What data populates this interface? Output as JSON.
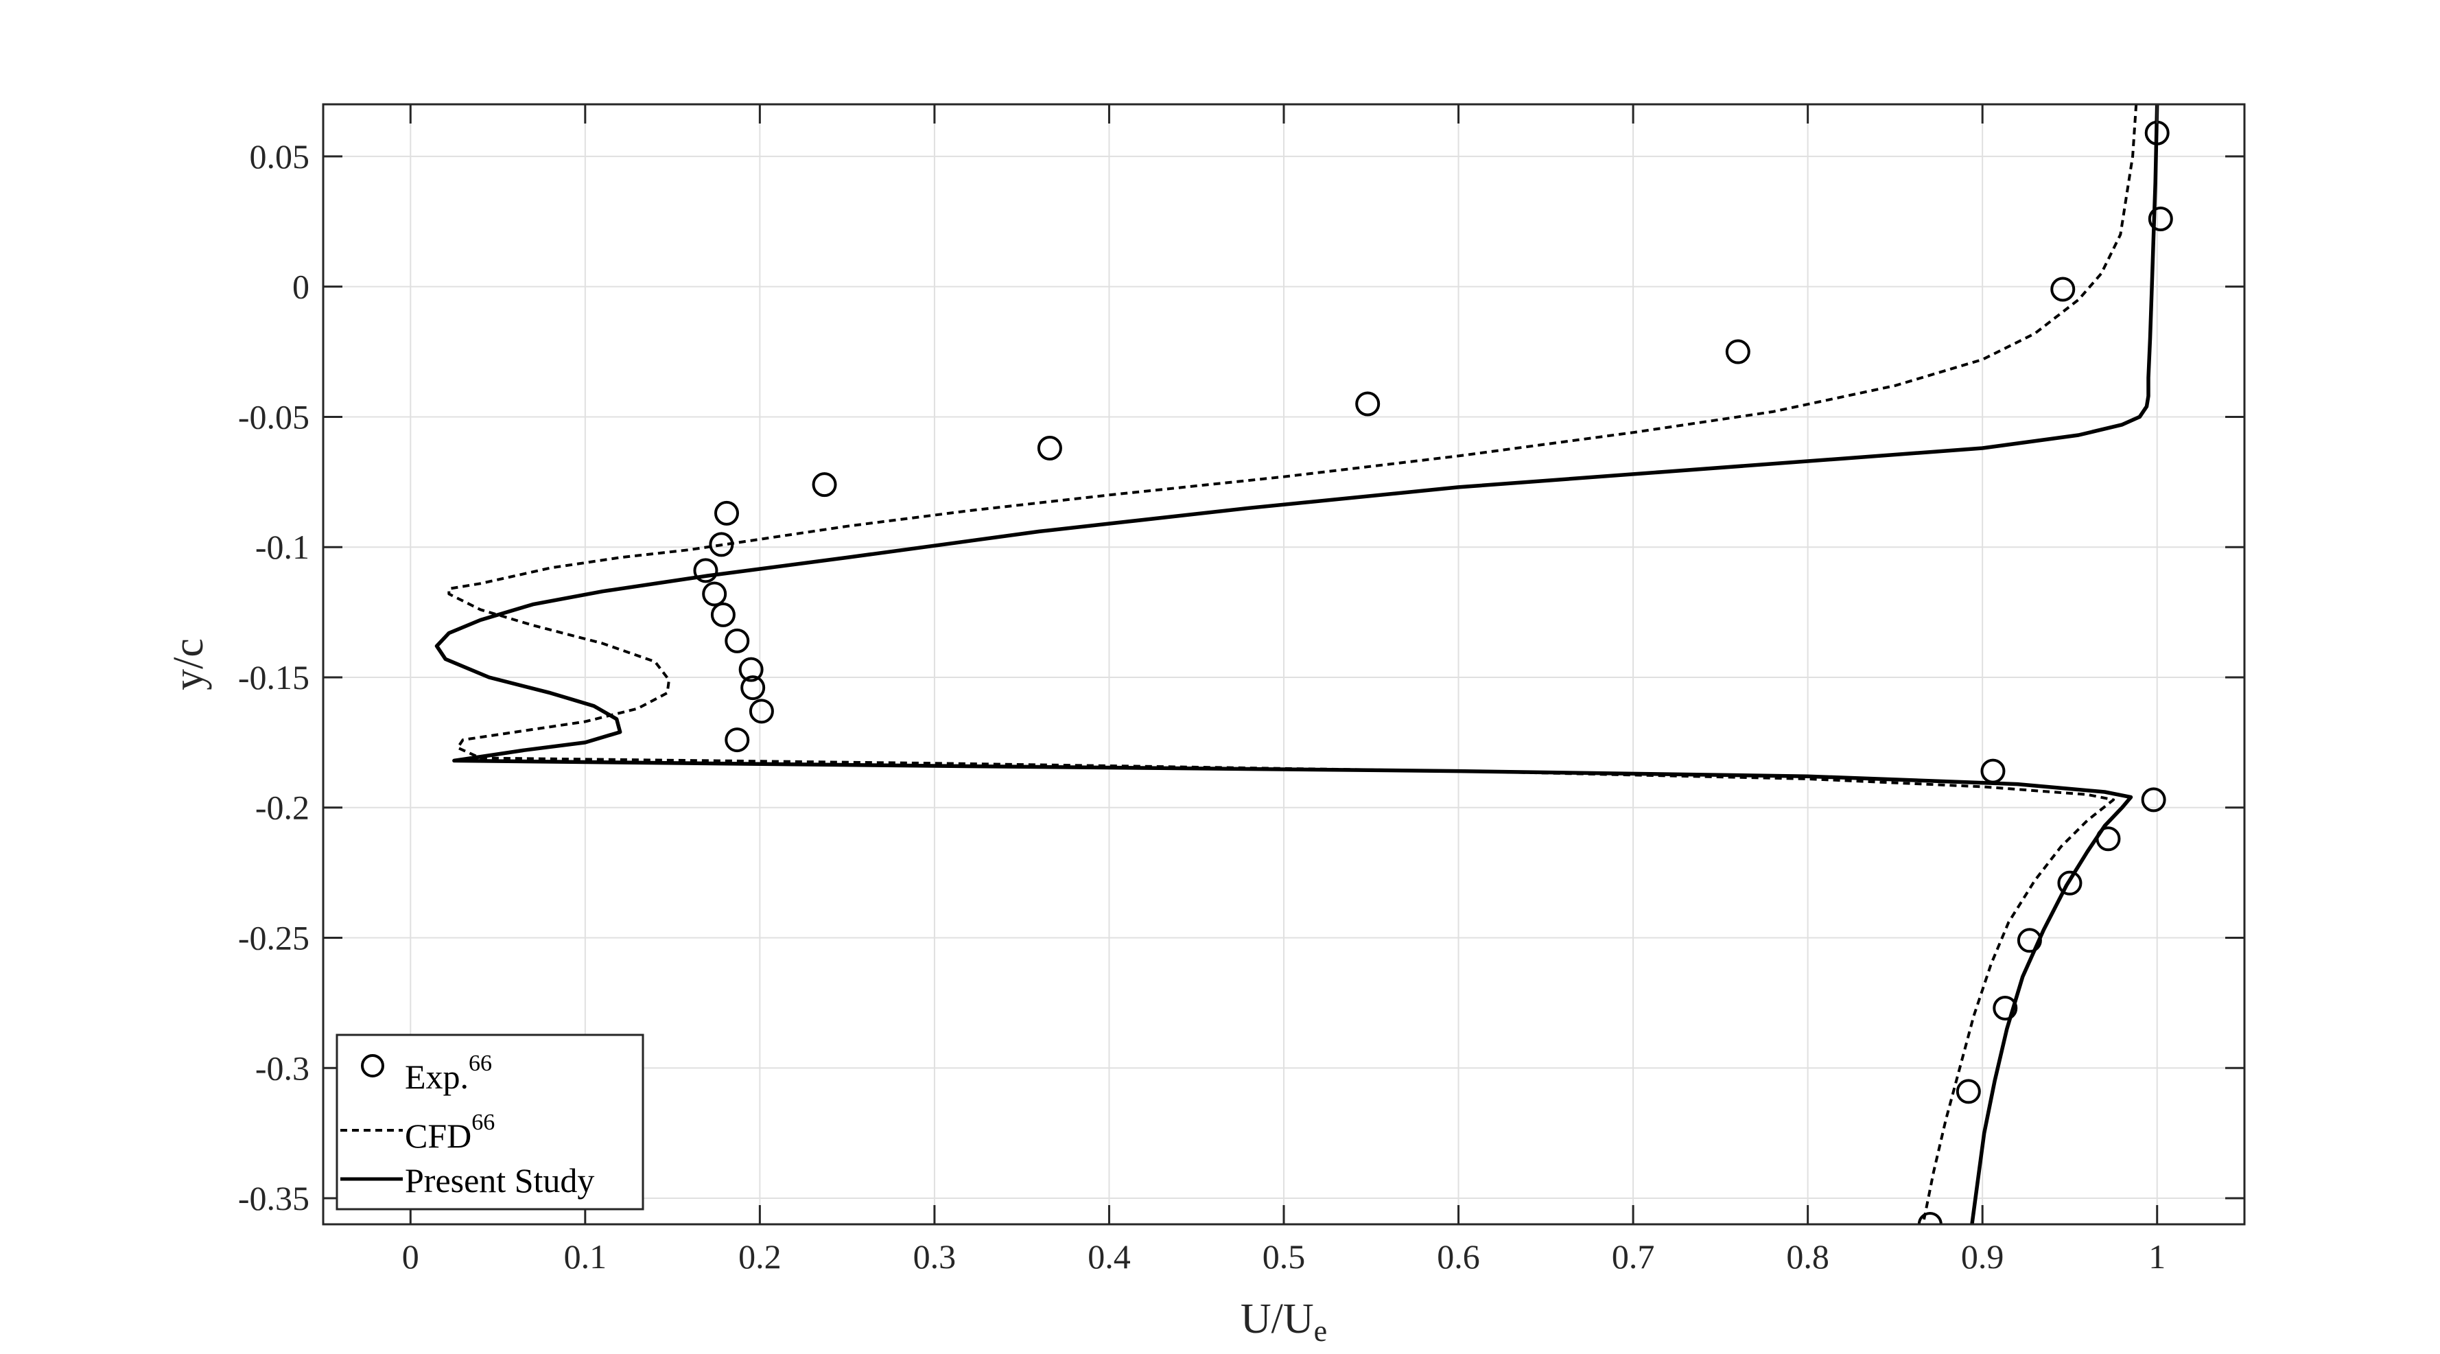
{
  "chart_data": {
    "type": "line",
    "xlabel": "U/U",
    "xlabel_sub": "e",
    "ylabel": "y/c",
    "xlim": [
      -0.05,
      1.05
    ],
    "ylim": [
      -0.36,
      0.07
    ],
    "xticks": [
      "0",
      "0.1",
      "0.2",
      "0.3",
      "0.4",
      "0.5",
      "0.6",
      "0.7",
      "0.8",
      "0.9",
      "1"
    ],
    "yticks": [
      "0.05",
      "0",
      "-0.05",
      "-0.1",
      "-0.15",
      "-0.2",
      "-0.25",
      "-0.3",
      "-0.35"
    ],
    "grid": true,
    "legend_position": "bottom-left",
    "series": [
      {
        "name": "Exp.",
        "name_sup": "66",
        "style": "markers",
        "x": [
          1.0,
          1.002,
          0.946,
          0.76,
          0.548,
          0.366,
          0.237,
          0.181,
          0.178,
          0.169,
          0.174,
          0.179,
          0.187,
          0.195,
          0.196,
          0.201,
          0.187,
          0.906,
          0.998,
          0.972,
          0.95,
          0.927,
          0.913,
          0.892,
          0.87
        ],
        "y": [
          0.059,
          0.026,
          -0.001,
          -0.025,
          -0.045,
          -0.062,
          -0.076,
          -0.087,
          -0.099,
          -0.109,
          -0.118,
          -0.126,
          -0.136,
          -0.147,
          -0.154,
          -0.163,
          -0.174,
          -0.186,
          -0.197,
          -0.212,
          -0.229,
          -0.251,
          -0.277,
          -0.309,
          -0.36
        ]
      },
      {
        "name": "CFD",
        "name_sup": "66",
        "style": "dashed",
        "x": [
          0.988,
          0.986,
          0.979,
          0.968,
          0.955,
          0.93,
          0.9,
          0.85,
          0.78,
          0.7,
          0.6,
          0.5,
          0.4,
          0.32,
          0.25,
          0.2,
          0.16,
          0.12,
          0.08,
          0.06,
          0.04,
          0.022,
          0.022,
          0.04,
          0.07,
          0.11,
          0.14,
          0.148,
          0.147,
          0.13,
          0.1,
          0.07,
          0.05,
          0.03,
          0.027,
          0.04,
          0.3,
          0.6,
          0.8,
          0.9,
          0.96,
          0.975,
          0.96,
          0.945,
          0.93,
          0.915,
          0.905,
          0.895,
          0.887,
          0.879,
          0.872,
          0.866
        ],
        "y": [
          0.07,
          0.05,
          0.02,
          0.005,
          -0.005,
          -0.018,
          -0.028,
          -0.038,
          -0.048,
          -0.056,
          -0.065,
          -0.073,
          -0.08,
          -0.086,
          -0.092,
          -0.097,
          -0.101,
          -0.104,
          -0.108,
          -0.111,
          -0.114,
          -0.116,
          -0.118,
          -0.124,
          -0.13,
          -0.137,
          -0.144,
          -0.151,
          -0.156,
          -0.162,
          -0.167,
          -0.17,
          -0.172,
          -0.174,
          -0.177,
          -0.181,
          -0.183,
          -0.186,
          -0.189,
          -0.192,
          -0.195,
          -0.197,
          -0.205,
          -0.215,
          -0.228,
          -0.244,
          -0.26,
          -0.28,
          -0.3,
          -0.32,
          -0.34,
          -0.36
        ]
      },
      {
        "name": "Present Study",
        "style": "solid",
        "x": [
          1.0,
          0.999,
          0.998,
          0.997,
          0.996,
          0.995,
          0.995,
          0.994,
          0.99,
          0.98,
          0.955,
          0.9,
          0.82,
          0.72,
          0.6,
          0.48,
          0.36,
          0.25,
          0.17,
          0.11,
          0.07,
          0.04,
          0.022,
          0.015,
          0.02,
          0.045,
          0.08,
          0.105,
          0.118,
          0.12,
          0.1,
          0.065,
          0.035,
          0.025,
          0.3,
          0.6,
          0.8,
          0.92,
          0.97,
          0.985,
          0.98,
          0.97,
          0.96,
          0.948,
          0.935,
          0.923,
          0.914,
          0.907,
          0.901,
          0.897,
          0.894
        ],
        "y": [
          0.07,
          0.04,
          0.02,
          0.0,
          -0.02,
          -0.035,
          -0.042,
          -0.046,
          -0.05,
          -0.053,
          -0.057,
          -0.062,
          -0.066,
          -0.071,
          -0.077,
          -0.085,
          -0.094,
          -0.104,
          -0.111,
          -0.117,
          -0.122,
          -0.128,
          -0.133,
          -0.138,
          -0.143,
          -0.15,
          -0.156,
          -0.161,
          -0.166,
          -0.171,
          -0.175,
          -0.178,
          -0.181,
          -0.182,
          -0.184,
          -0.186,
          -0.188,
          -0.191,
          -0.194,
          -0.196,
          -0.2,
          -0.207,
          -0.217,
          -0.23,
          -0.247,
          -0.265,
          -0.285,
          -0.305,
          -0.325,
          -0.345,
          -0.36
        ]
      }
    ]
  }
}
